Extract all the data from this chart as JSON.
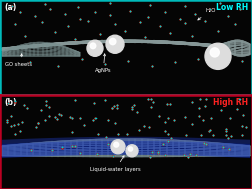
{
  "fig_width": 2.52,
  "fig_height": 1.89,
  "dpi": 100,
  "panel_a": {
    "label": "(a)",
    "border_color": "#00bbbb",
    "tag": "Low RH",
    "tag_color": "#00ffff",
    "bg_color": "#050505"
  },
  "panel_b": {
    "label": "(b)",
    "border_color": "#bb0022",
    "tag": "High RH",
    "tag_color": "#ff2222",
    "bg_color": "#050505"
  }
}
